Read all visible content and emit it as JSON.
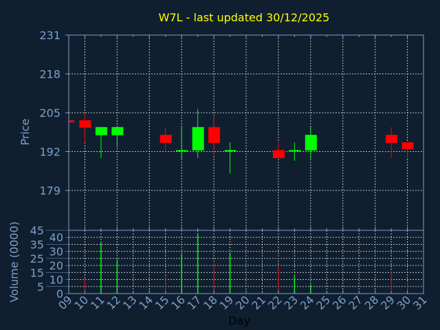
{
  "chart_data": {
    "type": "candlestick",
    "title": "W7L - last updated 30/12/2025",
    "xlabel": "Day",
    "ylabel": "Price",
    "volume_label": "Volume (0000)",
    "x_ticks": [
      "09",
      "10",
      "11",
      "12",
      "13",
      "14",
      "15",
      "16",
      "17",
      "18",
      "19",
      "20",
      "21",
      "22",
      "23",
      "24",
      "25",
      "26",
      "27",
      "28",
      "29",
      "30",
      "31"
    ],
    "y_ticks": [
      179,
      192,
      205,
      218,
      231
    ],
    "ylim": [
      166,
      231
    ],
    "volume_ticks": [
      0,
      5,
      10,
      15,
      20,
      25,
      30,
      35,
      40,
      45
    ],
    "volume_ylim": [
      0,
      45
    ],
    "grid": true,
    "colors": {
      "up": "#00ff00",
      "down": "#ff0000",
      "title": "#ffff00",
      "axis": "#7f9fc8",
      "background": "#0f1f30",
      "grid": "#c0c0c0"
    },
    "candles": [
      {
        "day": "09",
        "open": 202.5,
        "high": 202.5,
        "low": 201.8,
        "close": 201.8,
        "volume": 0
      },
      {
        "day": "10",
        "open": 202.5,
        "high": 205.0,
        "low": 194.9,
        "close": 200.0,
        "volume": 10
      },
      {
        "day": "11",
        "open": 197.5,
        "high": 200.2,
        "low": 189.8,
        "close": 200.2,
        "volume": 36
      },
      {
        "day": "12",
        "open": 197.5,
        "high": 200.2,
        "low": 193.6,
        "close": 200.2,
        "volume": 24
      },
      {
        "day": "15",
        "open": 197.6,
        "high": 200.2,
        "low": 192.0,
        "close": 194.9,
        "volume": 13
      },
      {
        "day": "16",
        "open": 192.1,
        "high": 200.2,
        "low": 189.7,
        "close": 192.5,
        "volume": 28
      },
      {
        "day": "17",
        "open": 192.4,
        "high": 206.2,
        "low": 189.8,
        "close": 200.2,
        "volume": 42
      },
      {
        "day": "18",
        "open": 200.2,
        "high": 203.2,
        "low": 191.1,
        "close": 194.9,
        "volume": 21.5
      },
      {
        "day": "19",
        "open": 192.1,
        "high": 195.1,
        "low": 184.7,
        "close": 192.5,
        "volume": 28.5
      },
      {
        "day": "22",
        "open": 192.5,
        "high": 195.1,
        "low": 189.8,
        "close": 189.8,
        "volume": 19.5
      },
      {
        "day": "23",
        "open": 192.1,
        "high": 195.1,
        "low": 188.9,
        "close": 192.5,
        "volume": 12.4
      },
      {
        "day": "24",
        "open": 192.4,
        "high": 200.2,
        "low": 189.7,
        "close": 197.6,
        "volume": 6.4
      },
      {
        "day": "29",
        "open": 197.6,
        "high": 200.2,
        "low": 189.8,
        "close": 194.9,
        "volume": 15.6
      },
      {
        "day": "30",
        "open": 195.1,
        "high": 195.1,
        "low": 189.8,
        "close": 192.8,
        "volume": 8.3
      }
    ]
  }
}
